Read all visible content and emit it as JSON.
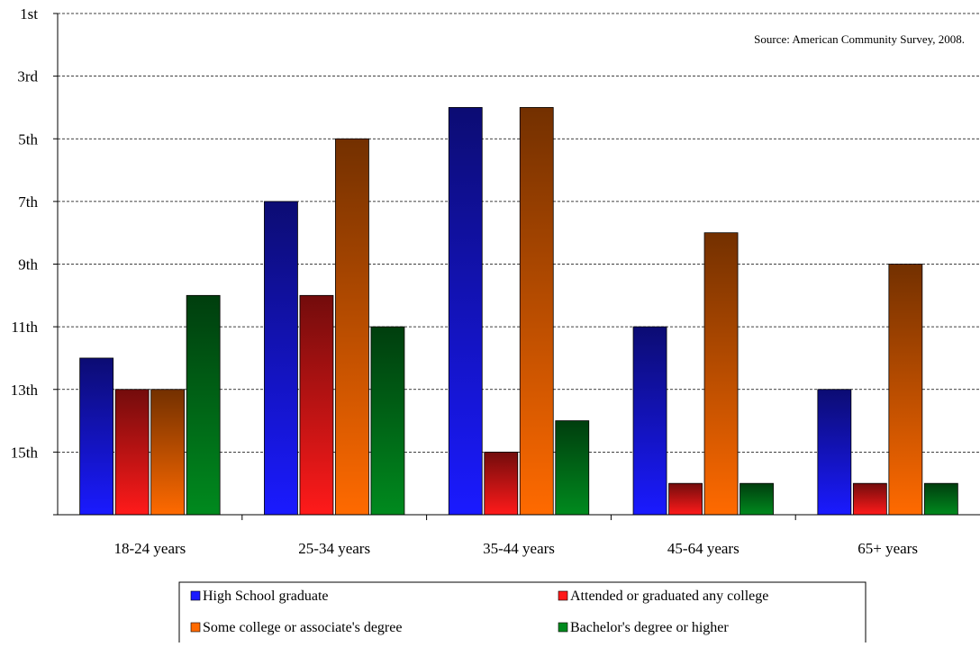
{
  "chart_data": {
    "type": "bar",
    "categories": [
      "18-24 years",
      "25-34 years",
      "35-44 years",
      "45-64 years",
      "65+ years"
    ],
    "series": [
      {
        "name": "High School graduate",
        "color": "#1a1aff",
        "values": [
          12,
          7,
          4,
          11,
          13
        ]
      },
      {
        "name": "Attended or graduated any college",
        "color": "#ff1a1a",
        "values": [
          13,
          10,
          15,
          16,
          16
        ]
      },
      {
        "name": "Some college or associate's degree",
        "color": "#ff6a00",
        "values": [
          13,
          5,
          4,
          8,
          9
        ]
      },
      {
        "name": "Bachelor's degree or higher",
        "color": "#008a1e",
        "values": [
          10,
          11,
          14,
          16,
          16
        ]
      }
    ],
    "y_axis": {
      "inverted": true,
      "range": [
        1,
        17
      ],
      "ticks": [
        1,
        3,
        5,
        7,
        9,
        11,
        13,
        15
      ],
      "tick_labels": [
        "1st",
        "3rd",
        "5th",
        "7th",
        "9th",
        "11th",
        "13th",
        "15th"
      ]
    },
    "grid": "horizontal dashed",
    "legend_position": "bottom",
    "annotation": "Source: American Community Survey, 2008.",
    "title": "",
    "xlabel": "",
    "ylabel": ""
  }
}
